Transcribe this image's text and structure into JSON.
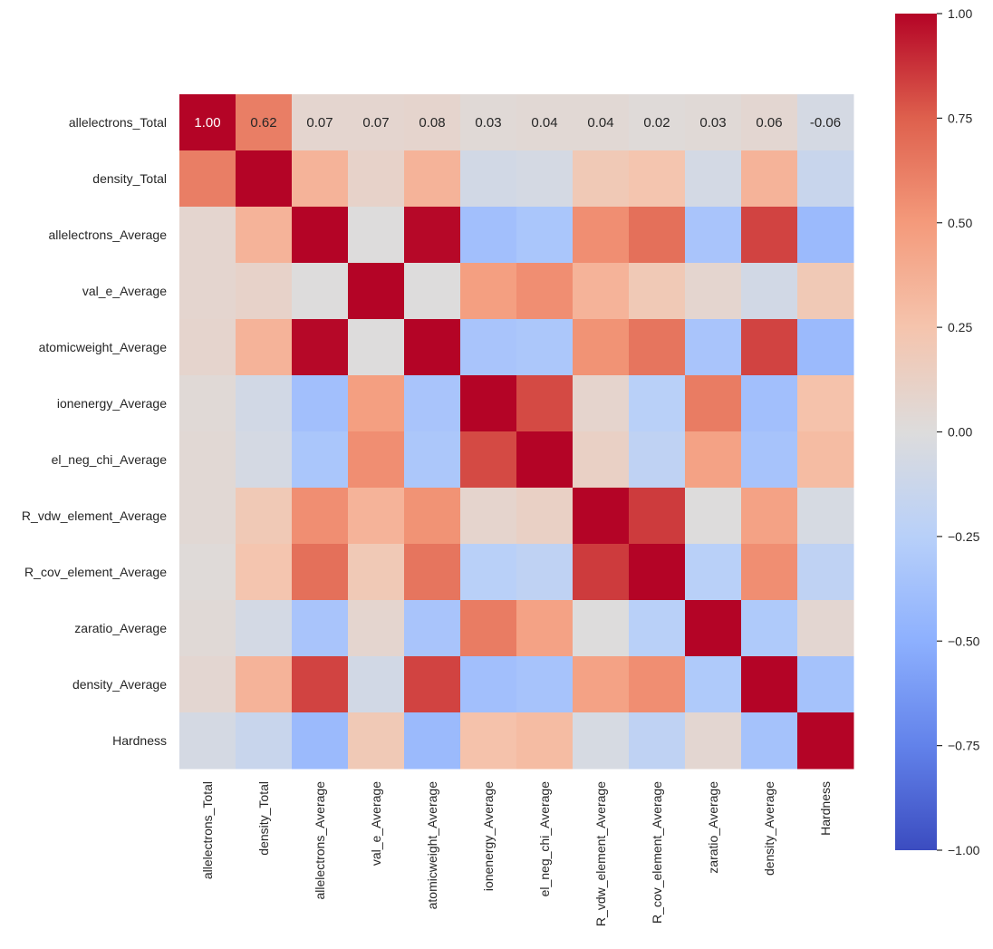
{
  "chart_data": {
    "type": "heatmap",
    "title": "",
    "xlabel": "",
    "ylabel": "",
    "colormap": "coolwarm",
    "vmin": -1.0,
    "vmax": 1.0,
    "labels": [
      "allelectrons_Total",
      "density_Total",
      "allelectrons_Average",
      "val_e_Average",
      "atomicweight_Average",
      "ionenergy_Average",
      "el_neg_chi_Average",
      "R_vdw_element_Average",
      "R_cov_element_Average",
      "zaratio_Average",
      "density_Average",
      "Hardness"
    ],
    "matrix": [
      [
        1.0,
        0.62,
        0.07,
        0.07,
        0.08,
        0.03,
        0.04,
        0.04,
        0.02,
        0.03,
        0.06,
        -0.06
      ],
      [
        0.62,
        1.0,
        0.35,
        0.1,
        0.35,
        -0.08,
        -0.06,
        0.2,
        0.24,
        -0.07,
        0.35,
        -0.14
      ],
      [
        0.07,
        0.35,
        1.0,
        0.0,
        0.99,
        -0.38,
        -0.33,
        0.55,
        0.68,
        -0.34,
        0.83,
        -0.42
      ],
      [
        0.07,
        0.1,
        0.0,
        1.0,
        0.0,
        0.47,
        0.55,
        0.35,
        0.2,
        0.07,
        -0.08,
        0.2
      ],
      [
        0.08,
        0.35,
        0.99,
        0.0,
        1.0,
        -0.34,
        -0.32,
        0.53,
        0.66,
        -0.34,
        0.83,
        -0.42
      ],
      [
        0.03,
        -0.08,
        -0.38,
        0.47,
        -0.34,
        1.0,
        0.81,
        0.08,
        -0.24,
        0.63,
        -0.38,
        0.26
      ],
      [
        0.04,
        -0.06,
        -0.33,
        0.55,
        -0.32,
        0.81,
        1.0,
        0.12,
        -0.2,
        0.45,
        -0.35,
        0.3
      ],
      [
        0.04,
        0.2,
        0.55,
        0.35,
        0.53,
        0.08,
        0.12,
        1.0,
        0.85,
        0.0,
        0.45,
        -0.05
      ],
      [
        0.02,
        0.24,
        0.68,
        0.2,
        0.66,
        -0.24,
        -0.2,
        0.85,
        1.0,
        -0.24,
        0.55,
        -0.2
      ],
      [
        0.03,
        -0.07,
        -0.34,
        0.07,
        -0.34,
        0.63,
        0.45,
        0.0,
        -0.24,
        1.0,
        -0.3,
        0.06
      ],
      [
        0.06,
        0.35,
        0.83,
        -0.08,
        0.83,
        -0.38,
        -0.35,
        0.45,
        0.55,
        -0.3,
        1.0,
        -0.36
      ],
      [
        -0.06,
        -0.14,
        -0.42,
        0.2,
        -0.42,
        0.26,
        0.3,
        -0.05,
        -0.2,
        0.06,
        -0.36,
        1.0
      ]
    ],
    "annotated_rows": [
      0
    ],
    "annotations": [
      "1.00",
      "0.62",
      "0.07",
      "0.07",
      "0.08",
      "0.03",
      "0.04",
      "0.04",
      "0.02",
      "0.03",
      "0.06",
      "-0.06"
    ],
    "colorbar": {
      "ticks": [
        1.0,
        0.75,
        0.5,
        0.25,
        0.0,
        -0.25,
        -0.5,
        -0.75,
        -1.0
      ],
      "tick_labels": [
        "1.00",
        "0.75",
        "0.50",
        "0.25",
        "0.00",
        "−0.25",
        "−0.50",
        "−0.75",
        "−1.00"
      ]
    },
    "grid": false,
    "legend": "colorbar-right"
  }
}
